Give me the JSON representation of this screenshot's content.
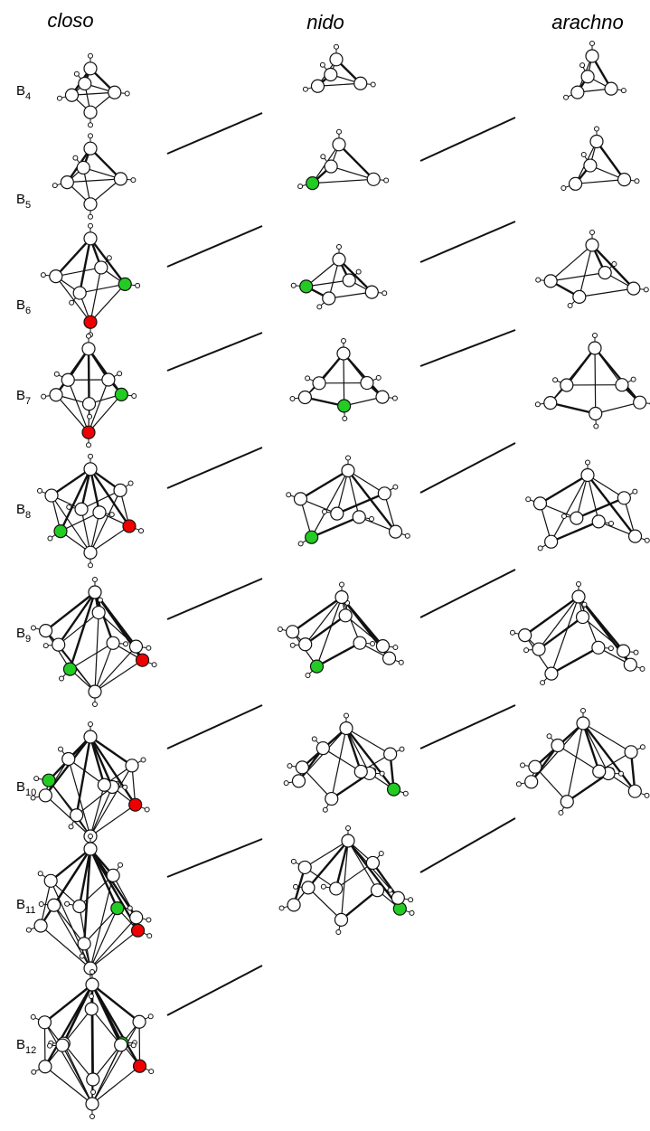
{
  "columns": [
    "closo",
    "nido",
    "arachno"
  ],
  "rows": [
    {
      "base": "B",
      "sub": "4"
    },
    {
      "base": "B",
      "sub": "5"
    },
    {
      "base": "B",
      "sub": "6"
    },
    {
      "base": "B",
      "sub": "7"
    },
    {
      "base": "B",
      "sub": "8"
    },
    {
      "base": "B",
      "sub": "9"
    },
    {
      "base": "B",
      "sub": "10"
    },
    {
      "base": "B",
      "sub": "11"
    },
    {
      "base": "B",
      "sub": "12"
    }
  ]
}
